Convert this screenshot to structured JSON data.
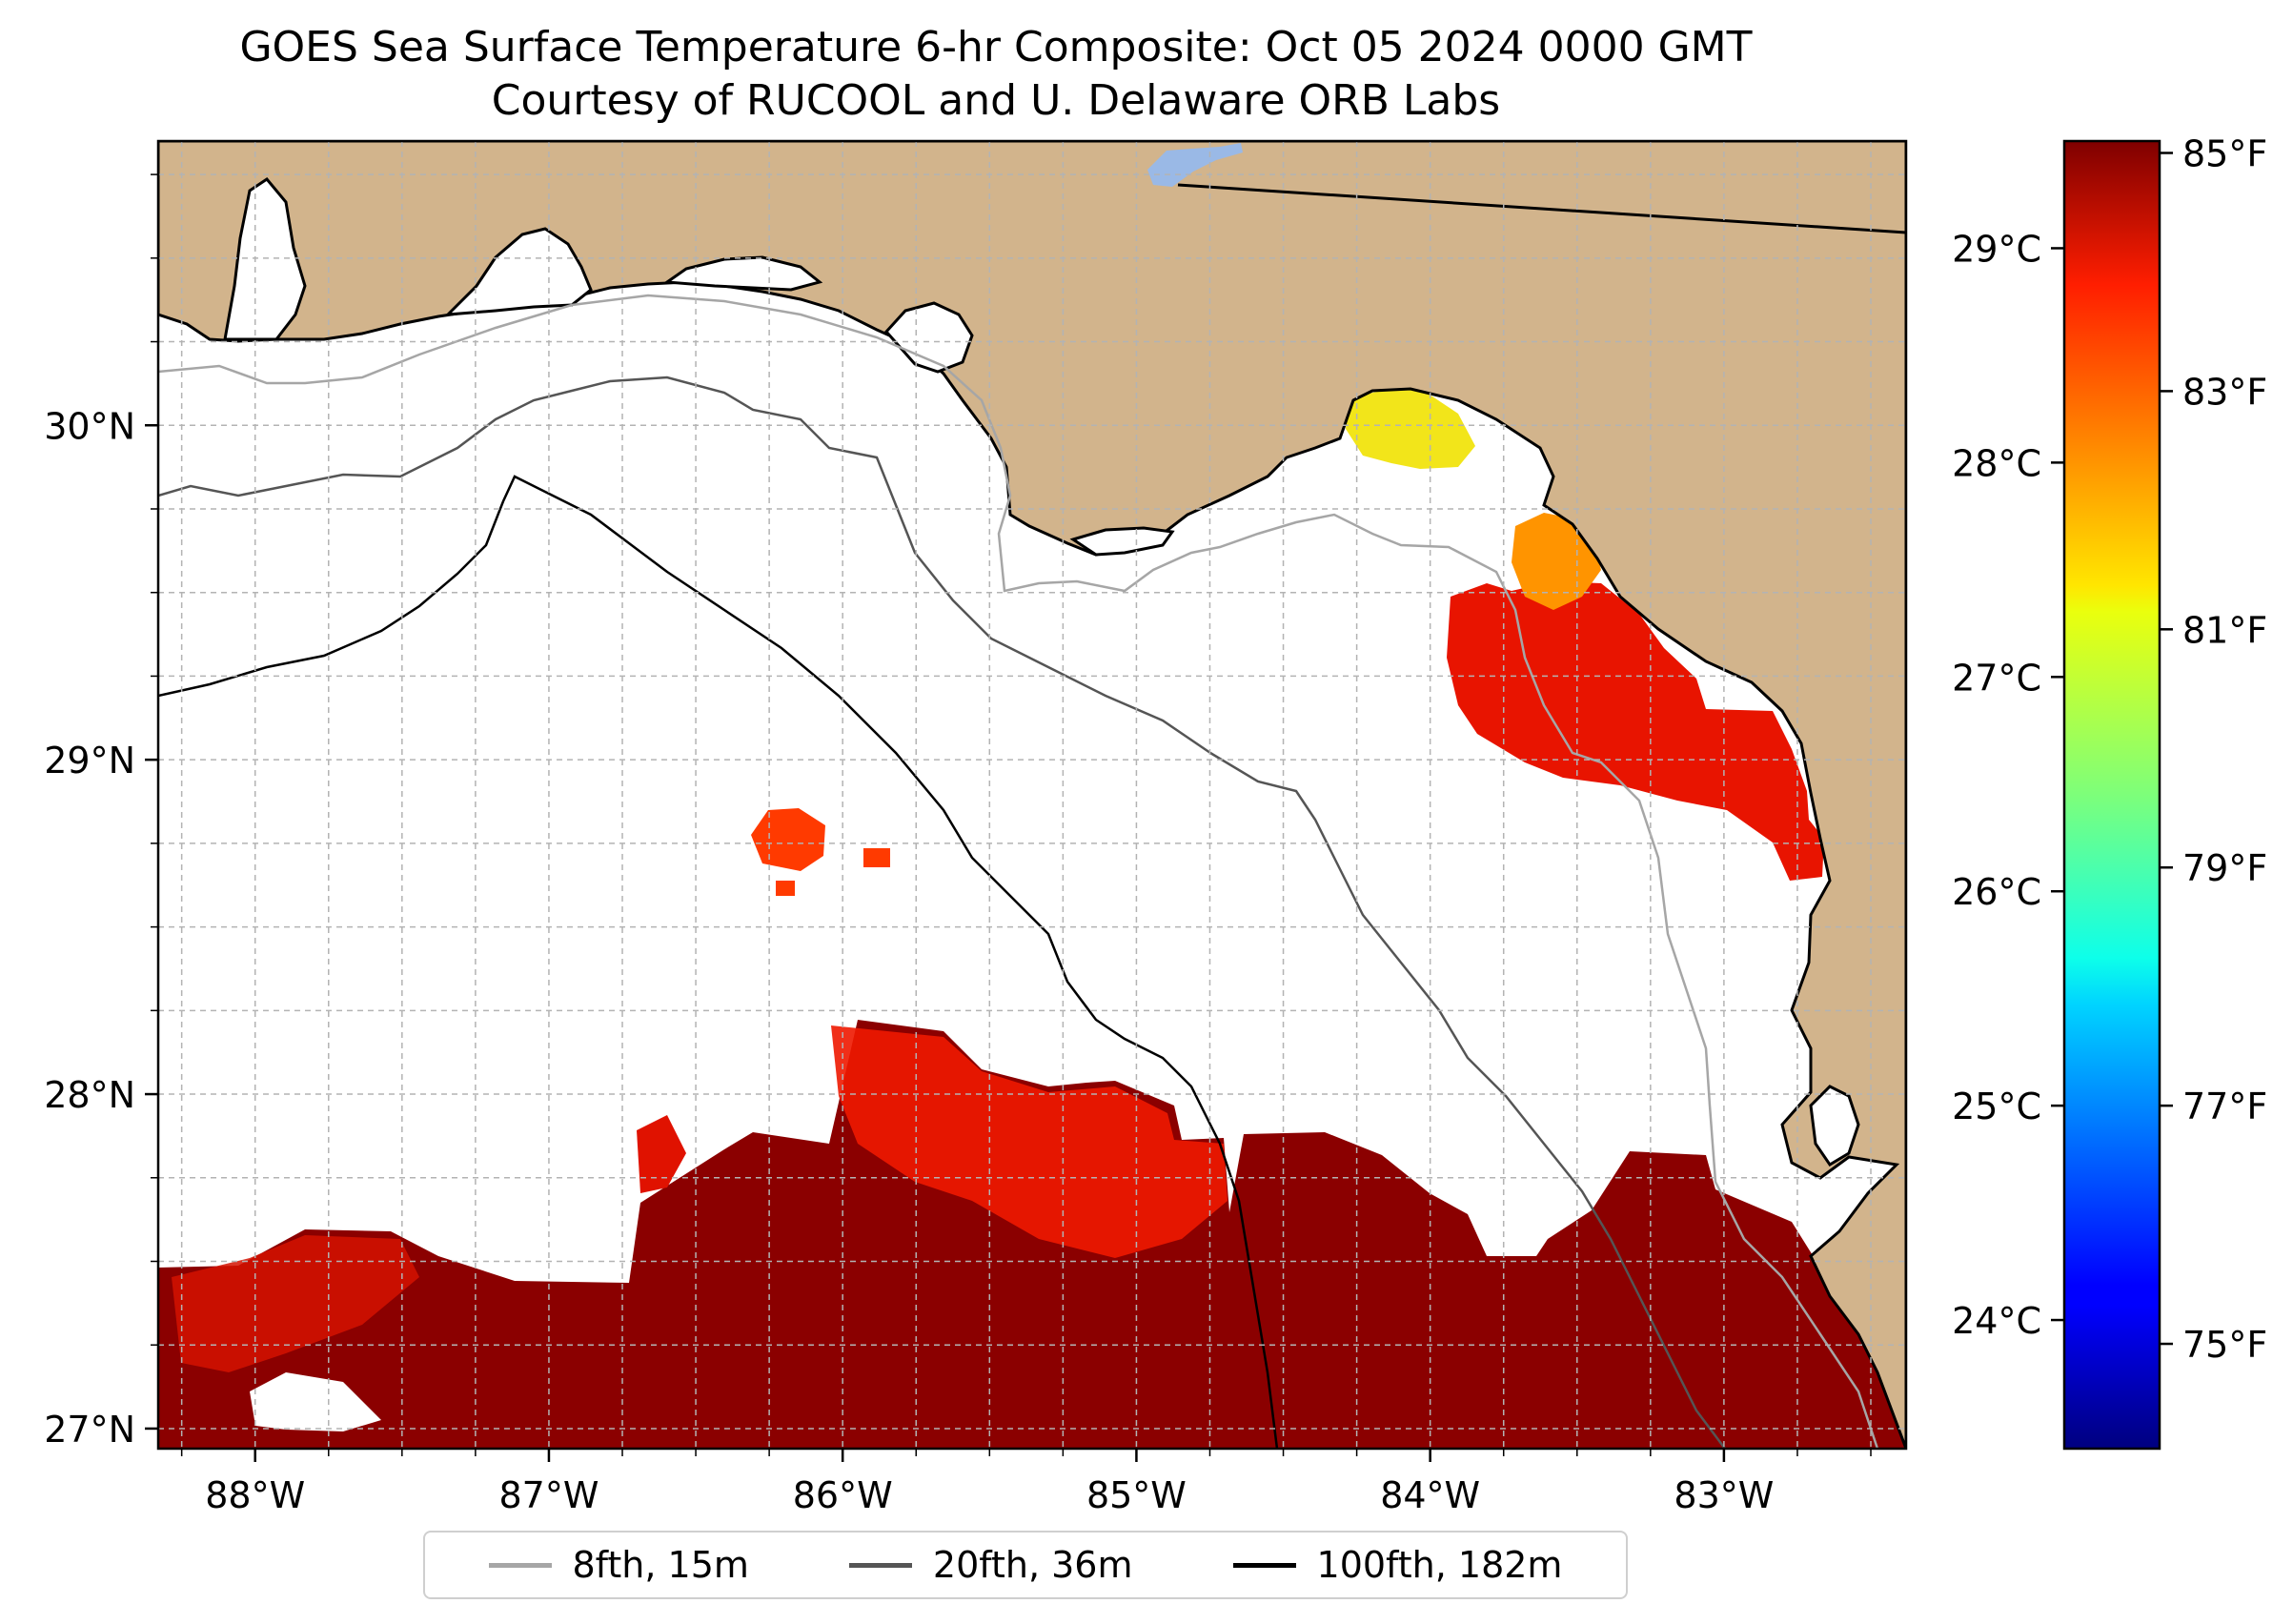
{
  "title": {
    "line1": "GOES Sea Surface Temperature 6-hr Composite: Oct 05 2024 0000 GMT",
    "line2": "Courtesy of RUCOOL and U. Delaware ORB Labs"
  },
  "map": {
    "lon_range": [
      -88.33,
      -82.38
    ],
    "lat_range": [
      26.94,
      30.85
    ],
    "lon_ticks": [
      {
        "value": -88,
        "label": "88°W"
      },
      {
        "value": -87,
        "label": "87°W"
      },
      {
        "value": -86,
        "label": "86°W"
      },
      {
        "value": -85,
        "label": "85°W"
      },
      {
        "value": -84,
        "label": "84°W"
      },
      {
        "value": -83,
        "label": "83°W"
      }
    ],
    "lat_ticks": [
      {
        "value": 27,
        "label": "27°N"
      },
      {
        "value": 28,
        "label": "28°N"
      },
      {
        "value": 29,
        "label": "29°N"
      },
      {
        "value": 30,
        "label": "30°N"
      }
    ],
    "gridlines": "dashed, every 0.25°",
    "colors": {
      "land": "#d2b48c",
      "ocean": "#ffffff",
      "coastline": "#000000",
      "lake": "#9ab9e6"
    }
  },
  "colorbar": {
    "colormap": "jet",
    "range_c": [
      23.4,
      29.5
    ],
    "celsius_ticks": [
      {
        "value": 24,
        "label": "24°C"
      },
      {
        "value": 25,
        "label": "25°C"
      },
      {
        "value": 26,
        "label": "26°C"
      },
      {
        "value": 27,
        "label": "27°C"
      },
      {
        "value": 28,
        "label": "28°C"
      },
      {
        "value": 29,
        "label": "29°C"
      }
    ],
    "fahrenheit_ticks": [
      {
        "value": 75,
        "label": "75°F"
      },
      {
        "value": 77,
        "label": "77°F"
      },
      {
        "value": 79,
        "label": "79°F"
      },
      {
        "value": 81,
        "label": "81°F"
      },
      {
        "value": 83,
        "label": "83°F"
      },
      {
        "value": 85,
        "label": "85°F"
      }
    ]
  },
  "legend": {
    "placement": "bottom-center",
    "items": [
      {
        "label": "8fth, 15m",
        "color": "#a6a6a6"
      },
      {
        "label": "20fth, 36m",
        "color": "#555555"
      },
      {
        "label": "100fth, 182m",
        "color": "#000000"
      }
    ]
  }
}
